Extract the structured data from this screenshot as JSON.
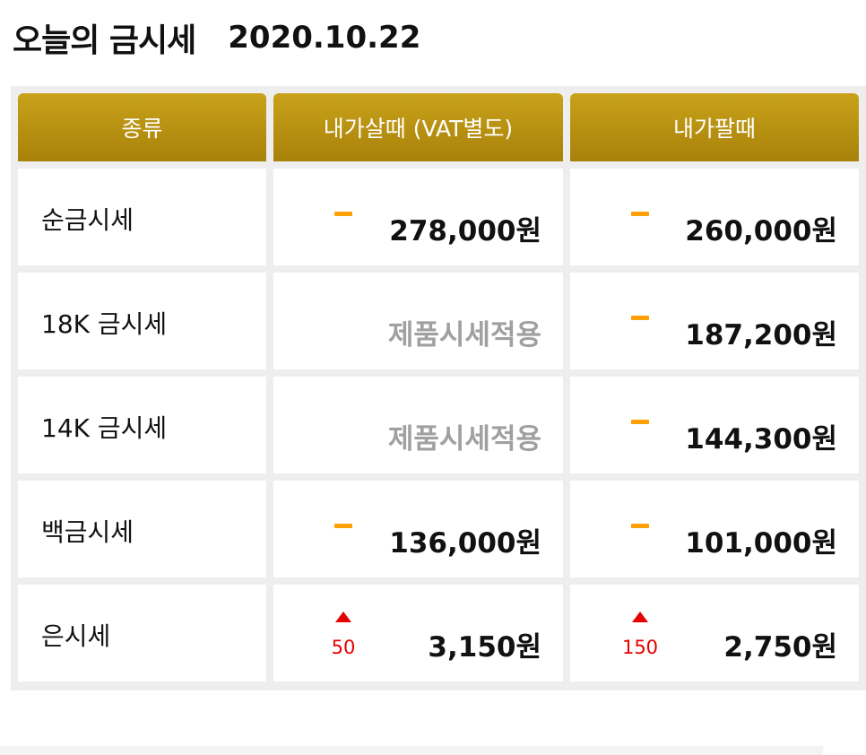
{
  "header": {
    "title": "오늘의 금시세",
    "date": "2020.10.22"
  },
  "columns": [
    "종류",
    "내가살때 (VAT별도)",
    "내가팔때"
  ],
  "rows": [
    {
      "name": "순금시세",
      "buy": {
        "indicator": "dash",
        "change": "",
        "price": "278,000원"
      },
      "sell": {
        "indicator": "dash",
        "change": "",
        "price": "260,000원"
      }
    },
    {
      "name": "18K 금시세",
      "buy": {
        "indicator": "none",
        "change": "",
        "price": "제품시세적용"
      },
      "sell": {
        "indicator": "dash",
        "change": "",
        "price": "187,200원"
      }
    },
    {
      "name": "14K 금시세",
      "buy": {
        "indicator": "none",
        "change": "",
        "price": "제품시세적용"
      },
      "sell": {
        "indicator": "dash",
        "change": "",
        "price": "144,300원"
      }
    },
    {
      "name": "백금시세",
      "buy": {
        "indicator": "dash",
        "change": "",
        "price": "136,000원"
      },
      "sell": {
        "indicator": "dash",
        "change": "",
        "price": "101,000원"
      }
    },
    {
      "name": "은시세",
      "buy": {
        "indicator": "up",
        "change": "50",
        "price": "3,150원"
      },
      "sell": {
        "indicator": "up",
        "change": "150",
        "price": "2,750원"
      }
    }
  ],
  "colors": {
    "header_gold": "#b8900f",
    "dash": "#ff9f00",
    "up": "#e60000",
    "muted": "#a0a0a0"
  }
}
